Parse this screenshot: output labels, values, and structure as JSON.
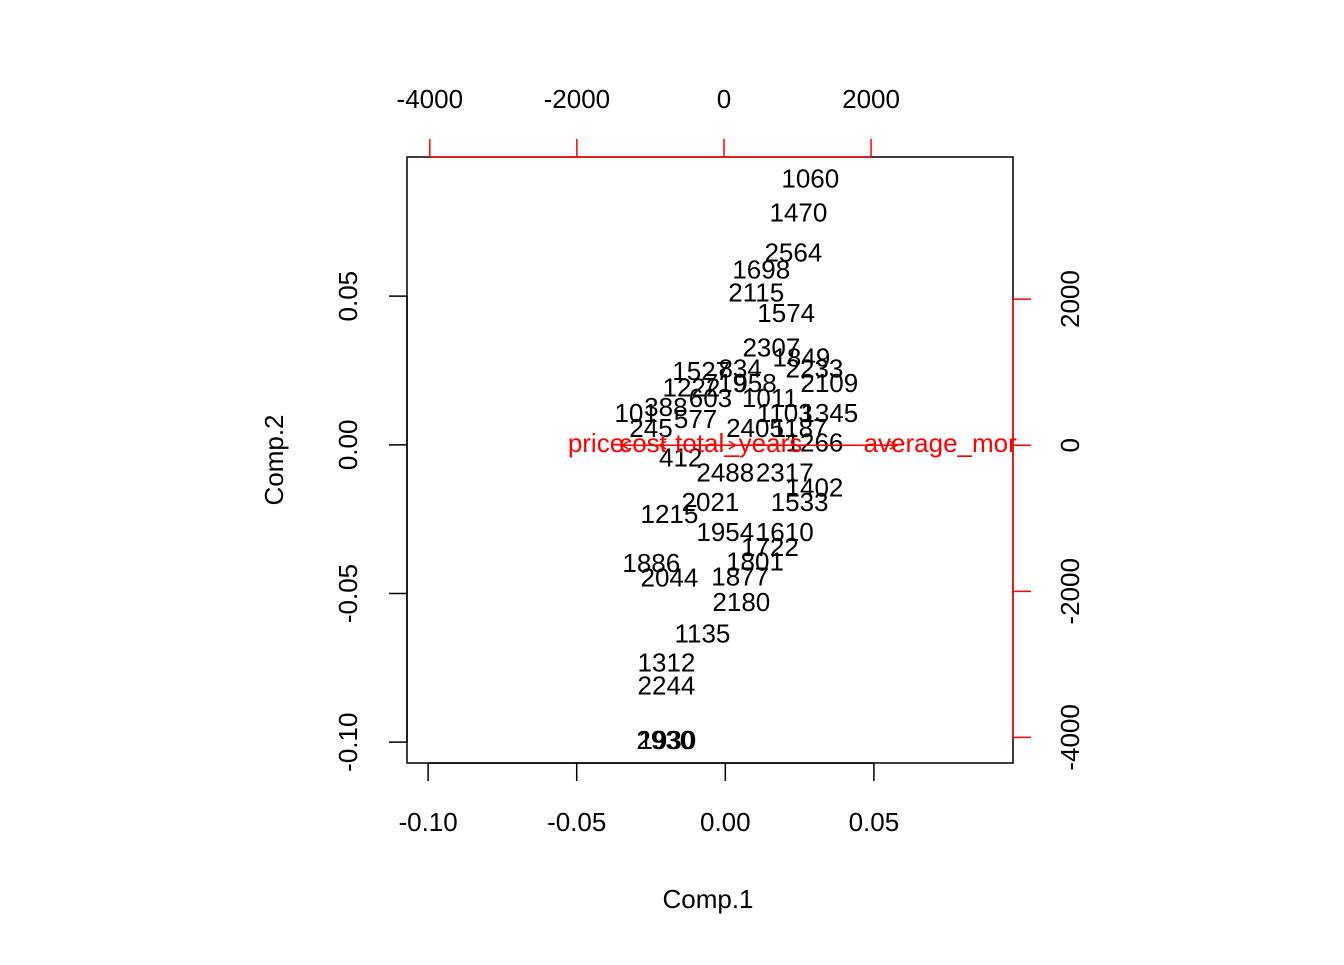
{
  "chart_data": {
    "type": "biplot",
    "xlabel": "Comp.1",
    "ylabel": "Comp.2",
    "xlim": [
      -0.1071,
      0.0968
    ],
    "ylim": [
      -0.107,
      0.0968
    ],
    "xticks": [
      {
        "value": -0.1,
        "label": "-0.10"
      },
      -0.05,
      {
        "value": 0,
        "label": "0.00"
      },
      0.05
    ],
    "yticks": [
      {
        "value": -0.1,
        "label": "-0.10"
      },
      -0.05,
      {
        "value": 0,
        "label": "0.00"
      },
      0.05
    ],
    "x2lim": [
      -4310,
      3930
    ],
    "y2lim": [
      -4350,
      3945
    ],
    "x2ticks": [
      -4000,
      -2000,
      0,
      2000
    ],
    "y2ticks": [
      -4000,
      -2000,
      0,
      2000
    ],
    "point_color": "#000000",
    "loading_color": "#ff0000",
    "points": {
      "labels": [
        "1060",
        "1470",
        "2930",
        "1930",
        "2180",
        "1215",
        "1135",
        "2307",
        "1527",
        "1222",
        "2564",
        "1698",
        "2115",
        "1886",
        "2044",
        "1312",
        "2244",
        "1574",
        "1849",
        "101",
        "245",
        "388",
        "412",
        "577",
        "603",
        "719",
        "834",
        "958",
        "1011",
        "1103",
        "1187",
        "1266",
        "1345",
        "1402",
        "1533",
        "1610",
        "1722",
        "1801",
        "1877",
        "1954",
        "2021",
        "2109",
        "2233",
        "2317",
        "2405",
        "2488"
      ],
      "x": [
        0.0286,
        0.0246,
        -0.0202,
        -0.0195,
        0.0054,
        -0.0188,
        -0.0077,
        0.0155,
        -0.0081,
        -0.0114,
        0.0229,
        0.0121,
        0.0104,
        -0.0249,
        -0.0188,
        -0.0198,
        -0.0198,
        0.0205,
        0.0256,
        -0.03,
        -0.025,
        -0.02,
        -0.015,
        -0.01,
        -0.005,
        0,
        0.005,
        0.01,
        0.015,
        0.02,
        0.025,
        0.03,
        0.035,
        0.03,
        0.025,
        0.02,
        0.015,
        0.01,
        0.005,
        0,
        -0.005,
        0.035,
        0.03,
        0.02,
        0.01,
        0
      ],
      "y": [
        0.0888,
        0.0774,
        -0.0999,
        -0.0999,
        -0.0535,
        -0.0239,
        -0.0642,
        0.032,
        0.0242,
        0.0185,
        0.0639,
        0.0582,
        0.0505,
        -0.0404,
        -0.0454,
        -0.074,
        -0.0817,
        0.0437,
        0.0286,
        0.01,
        0.005,
        0.012,
        -0.005,
        0.008,
        0.015,
        0.02,
        0.025,
        0.02,
        0.015,
        0.01,
        0.005,
        0,
        0.01,
        -0.015,
        -0.02,
        -0.03,
        -0.035,
        -0.04,
        -0.045,
        -0.03,
        -0.02,
        0.02,
        0.025,
        -0.01,
        0.005,
        -0.01
      ]
    },
    "loadings": {
      "labels": [
        "price",
        "cost",
        "total_years",
        "average_mor"
      ],
      "x": [
        -1740,
        -1100,
        200,
        2940
      ],
      "y": [
        0,
        0,
        0,
        0
      ]
    }
  }
}
